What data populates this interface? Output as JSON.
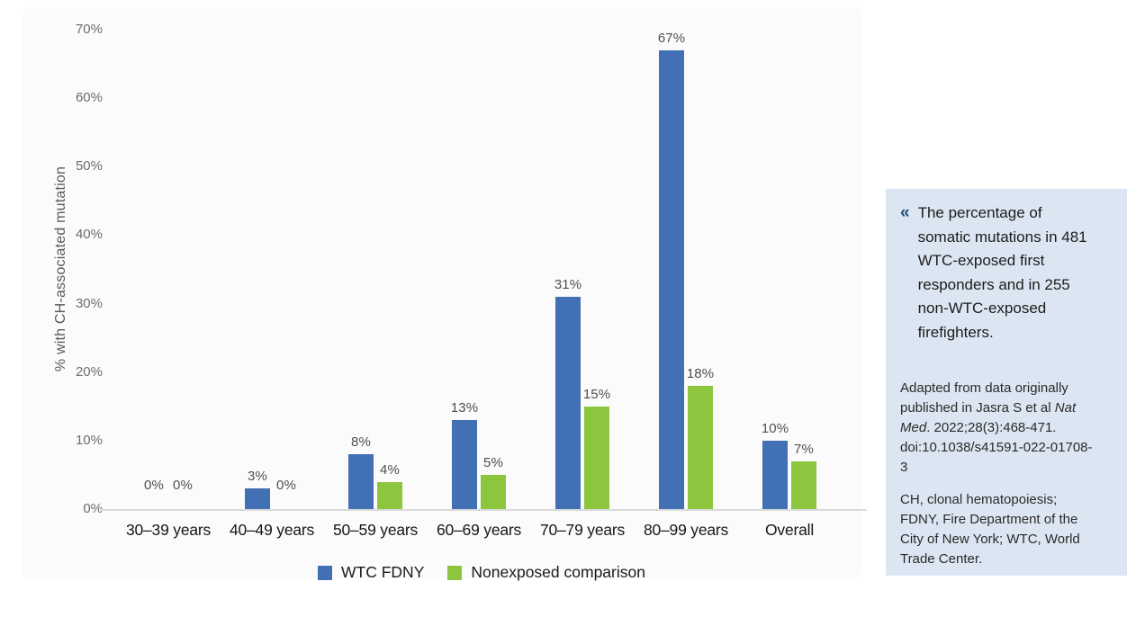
{
  "chart_data": {
    "type": "bar",
    "title": "",
    "categories": [
      "30–39 years",
      "40–49 years",
      "50–59 years",
      "60–69 years",
      "70–79 years",
      "80–99 years",
      "Overall"
    ],
    "series": [
      {
        "name": "WTC FDNY",
        "color": "#4170b4",
        "values": [
          0,
          3,
          8,
          13,
          31,
          67,
          10
        ],
        "labels": [
          "0%",
          "3%",
          "8%",
          "13%",
          "31%",
          "67%",
          "10%"
        ]
      },
      {
        "name": "Nonexposed comparison",
        "color": "#8cc63f",
        "values": [
          0,
          0,
          4,
          5,
          15,
          18,
          7
        ],
        "labels": [
          "0%",
          "0%",
          "4%",
          "5%",
          "15%",
          "18%",
          "7%"
        ]
      }
    ],
    "xlabel": "",
    "ylabel": "% with CH-associated mutation",
    "ylim": [
      0,
      70
    ],
    "yticks": [
      "0%",
      "10%",
      "20%",
      "30%",
      "40%",
      "50%",
      "60%",
      "70%"
    ],
    "grid": false,
    "legend_position": "bottom"
  },
  "panel": {
    "background": "#dce6f2",
    "marker": "«",
    "marker_color": "#1f4e79",
    "caption": "The percentage of somatic mutations in 481 WTC-exposed first responders and in 255 non-WTC-exposed firefighters.",
    "citation_pre": "Adapted from data originally published in Jasra S et al ",
    "citation_italic": "Nat Med",
    "citation_post": ". 2022;28(3):468-471. doi:10.1038/s41591-022-01708-3",
    "abbreviations": "CH, clonal hematopoiesis; FDNY, Fire Department of the City of New York; WTC, World Trade Center."
  }
}
